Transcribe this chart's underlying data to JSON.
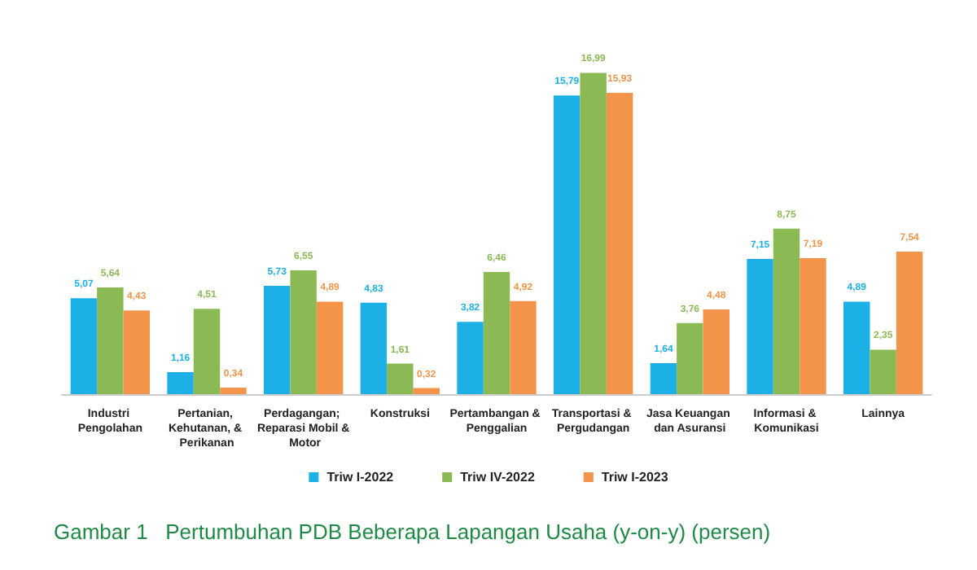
{
  "chart_data": {
    "type": "bar",
    "title": "Gambar 1   Pertumbuhan PDB Beberapa Lapangan Usaha (y-on-y) (persen)",
    "categories": [
      "Industri Pengolahan",
      "Pertanian, Kehutanan, & Perikanan",
      "Perdagangan; Reparasi Mobil & Motor",
      "Konstruksi",
      "Pertambangan & Penggalian",
      "Transportasi & Pergudangan",
      "Jasa Keuangan dan Asuransi",
      "Informasi & Komunikasi",
      "Lainnya"
    ],
    "series": [
      {
        "name": "Triw I-2022",
        "color": "#1cb0e6",
        "values": [
          5.07,
          1.16,
          5.73,
          4.83,
          3.82,
          15.79,
          1.64,
          7.15,
          4.89
        ],
        "value_labels": [
          "5,07",
          "1,16",
          "5,73",
          "4,83",
          "3,82",
          "15,79",
          "1,64",
          "7,15",
          "4,89"
        ]
      },
      {
        "name": "Triw IV-2022",
        "color": "#8bba55",
        "values": [
          5.64,
          4.51,
          6.55,
          1.61,
          6.46,
          16.99,
          3.76,
          8.75,
          2.35
        ],
        "value_labels": [
          "5,64",
          "4,51",
          "6,55",
          "1,61",
          "6,46",
          "16,99",
          "3,76",
          "8,75",
          "2,35"
        ]
      },
      {
        "name": "Triw I-2023",
        "color": "#f4944a",
        "values": [
          4.43,
          0.34,
          4.89,
          0.32,
          4.92,
          15.93,
          4.48,
          7.19,
          7.54
        ],
        "value_labels": [
          "4,43",
          "0,34",
          "4,89",
          "0,32",
          "4,92",
          "15,93",
          "4,48",
          "7,19",
          "7,54"
        ]
      }
    ],
    "legend": "bottom"
  }
}
